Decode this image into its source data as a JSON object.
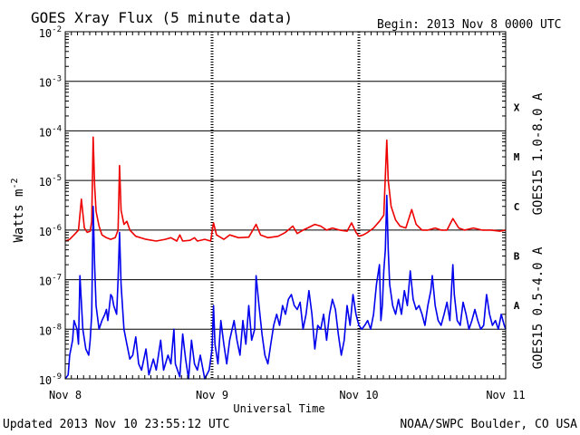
{
  "header": {
    "title": "GOES Xray Flux (5 minute data)",
    "begin": "Begin:  2013 Nov 8 0000 UTC"
  },
  "footer": {
    "updated": "Updated 2013 Nov 10 23:55:12 UTC",
    "credit": "NOAA/SWPC Boulder, CO USA"
  },
  "colors": {
    "long_channel": "#ee0000",
    "short_channel": "#0000ee",
    "axis": "#000000"
  },
  "chart_data": {
    "type": "line",
    "title": "GOES Xray Flux (5 minute data)",
    "xlabel": "Universal Time",
    "ylabel": "Watts m-2",
    "x_unit": "days since 2013 Nov 8 0000 UTC",
    "xlim": [
      0,
      3
    ],
    "ylim": [
      1e-09,
      0.01
    ],
    "yscale": "log",
    "grid": "horizontal lines at each decade, dashed day boundaries",
    "x_ticks": [
      {
        "value": 0,
        "label": "Nov 8"
      },
      {
        "value": 1,
        "label": "Nov 9"
      },
      {
        "value": 2,
        "label": "Nov 10"
      },
      {
        "value": 3,
        "label": "Nov 11"
      }
    ],
    "y_ticks": [
      {
        "value": 1e-09,
        "base": "10",
        "exp": "-9"
      },
      {
        "value": 1e-08,
        "base": "10",
        "exp": "-8"
      },
      {
        "value": 1e-07,
        "base": "10",
        "exp": "-7"
      },
      {
        "value": 1e-06,
        "base": "10",
        "exp": "-6"
      },
      {
        "value": 1e-05,
        "base": "10",
        "exp": "-5"
      },
      {
        "value": 0.0001,
        "base": "10",
        "exp": "-4"
      },
      {
        "value": 0.001,
        "base": "10",
        "exp": "-3"
      },
      {
        "value": 0.01,
        "base": "10",
        "exp": "-2"
      }
    ],
    "flare_classes": [
      {
        "label": "X",
        "value": 0.0003
      },
      {
        "label": "M",
        "value": 3e-05
      },
      {
        "label": "C",
        "value": 3e-06
      },
      {
        "label": "B",
        "value": 3e-07
      },
      {
        "label": "A",
        "value": 3e-08
      }
    ],
    "series": [
      {
        "name": "GOES15 1.0-8.0 A",
        "color": "#ee0000",
        "points": [
          [
            0.0,
            6e-07
          ],
          [
            0.03,
            6.5e-07
          ],
          [
            0.06,
            8e-07
          ],
          [
            0.09,
            1e-06
          ],
          [
            0.11,
            4.2e-06
          ],
          [
            0.13,
            1.1e-06
          ],
          [
            0.15,
            9e-07
          ],
          [
            0.17,
            9.5e-07
          ],
          [
            0.18,
            1.5e-06
          ],
          [
            0.19,
            7.5e-05
          ],
          [
            0.2,
            8e-06
          ],
          [
            0.21,
            2.4e-06
          ],
          [
            0.23,
            1.2e-06
          ],
          [
            0.25,
            8e-07
          ],
          [
            0.28,
            7e-07
          ],
          [
            0.31,
            6.5e-07
          ],
          [
            0.34,
            7e-07
          ],
          [
            0.36,
            1e-06
          ],
          [
            0.37,
            2e-05
          ],
          [
            0.38,
            2.5e-06
          ],
          [
            0.4,
            1.3e-06
          ],
          [
            0.42,
            1.5e-06
          ],
          [
            0.44,
            1e-06
          ],
          [
            0.48,
            7.5e-07
          ],
          [
            0.55,
            6.5e-07
          ],
          [
            0.62,
            6e-07
          ],
          [
            0.68,
            6.5e-07
          ],
          [
            0.72,
            7e-07
          ],
          [
            0.76,
            6e-07
          ],
          [
            0.78,
            8e-07
          ],
          [
            0.8,
            6e-07
          ],
          [
            0.85,
            6.2e-07
          ],
          [
            0.88,
            7e-07
          ],
          [
            0.9,
            6e-07
          ],
          [
            0.95,
            6.5e-07
          ],
          [
            0.99,
            6e-07
          ],
          [
            1.01,
            1.4e-06
          ],
          [
            1.03,
            8e-07
          ],
          [
            1.08,
            6.5e-07
          ],
          [
            1.12,
            8e-07
          ],
          [
            1.18,
            7e-07
          ],
          [
            1.25,
            7.2e-07
          ],
          [
            1.3,
            1.3e-06
          ],
          [
            1.33,
            8e-07
          ],
          [
            1.38,
            7e-07
          ],
          [
            1.45,
            7.5e-07
          ],
          [
            1.5,
            9e-07
          ],
          [
            1.55,
            1.2e-06
          ],
          [
            1.58,
            8.5e-07
          ],
          [
            1.62,
            1e-06
          ],
          [
            1.65,
            1.1e-06
          ],
          [
            1.7,
            1.3e-06
          ],
          [
            1.74,
            1.2e-06
          ],
          [
            1.78,
            1e-06
          ],
          [
            1.82,
            1.1e-06
          ],
          [
            1.87,
            1e-06
          ],
          [
            1.92,
            9.5e-07
          ],
          [
            1.95,
            1.4e-06
          ],
          [
            1.98,
            9e-07
          ],
          [
            2.0,
            7.5e-07
          ],
          [
            2.03,
            8e-07
          ],
          [
            2.06,
            9e-07
          ],
          [
            2.1,
            1.1e-06
          ],
          [
            2.14,
            1.5e-06
          ],
          [
            2.17,
            2e-06
          ],
          [
            2.19,
            6.5e-05
          ],
          [
            2.2,
            1e-05
          ],
          [
            2.22,
            3e-06
          ],
          [
            2.25,
            1.6e-06
          ],
          [
            2.28,
            1.2e-06
          ],
          [
            2.32,
            1.1e-06
          ],
          [
            2.36,
            2.6e-06
          ],
          [
            2.39,
            1.3e-06
          ],
          [
            2.43,
            1e-06
          ],
          [
            2.47,
            1e-06
          ],
          [
            2.52,
            1.1e-06
          ],
          [
            2.56,
            1e-06
          ],
          [
            2.6,
            1e-06
          ],
          [
            2.64,
            1.7e-06
          ],
          [
            2.68,
            1.1e-06
          ],
          [
            2.72,
            1e-06
          ],
          [
            2.78,
            1.1e-06
          ],
          [
            2.84,
            1e-06
          ],
          [
            2.9,
            1e-06
          ],
          [
            2.96,
            9.5e-07
          ],
          [
            3.0,
            1e-06
          ]
        ]
      },
      {
        "name": "GOES15 0.5-4.0 A",
        "color": "#0000ee",
        "points": [
          [
            0.0,
            1e-09
          ],
          [
            0.02,
            1.2e-09
          ],
          [
            0.03,
            3e-09
          ],
          [
            0.05,
            6e-09
          ],
          [
            0.06,
            1.5e-08
          ],
          [
            0.08,
            1e-08
          ],
          [
            0.09,
            5e-09
          ],
          [
            0.1,
            1.2e-07
          ],
          [
            0.12,
            1e-08
          ],
          [
            0.14,
            4e-09
          ],
          [
            0.16,
            3e-09
          ],
          [
            0.17,
            6e-09
          ],
          [
            0.18,
            2e-08
          ],
          [
            0.19,
            3e-06
          ],
          [
            0.2,
            2e-07
          ],
          [
            0.21,
            3e-08
          ],
          [
            0.23,
            1e-08
          ],
          [
            0.25,
            1.5e-08
          ],
          [
            0.27,
            2e-08
          ],
          [
            0.28,
            2.5e-08
          ],
          [
            0.29,
            1.5e-08
          ],
          [
            0.31,
            5e-08
          ],
          [
            0.32,
            4.5e-08
          ],
          [
            0.33,
            3e-08
          ],
          [
            0.35,
            2e-08
          ],
          [
            0.36,
            1e-07
          ],
          [
            0.37,
            9e-07
          ],
          [
            0.38,
            8e-08
          ],
          [
            0.4,
            1e-08
          ],
          [
            0.42,
            5e-09
          ],
          [
            0.44,
            2.5e-09
          ],
          [
            0.46,
            3e-09
          ],
          [
            0.48,
            7e-09
          ],
          [
            0.5,
            2e-09
          ],
          [
            0.52,
            1.5e-09
          ],
          [
            0.55,
            4e-09
          ],
          [
            0.57,
            1.2e-09
          ],
          [
            0.6,
            2.5e-09
          ],
          [
            0.62,
            1.5e-09
          ],
          [
            0.65,
            6e-09
          ],
          [
            0.67,
            1.5e-09
          ],
          [
            0.7,
            3e-09
          ],
          [
            0.72,
            2e-09
          ],
          [
            0.74,
            1e-08
          ],
          [
            0.75,
            2e-09
          ],
          [
            0.78,
            1.1e-09
          ],
          [
            0.8,
            8e-09
          ],
          [
            0.82,
            2.5e-09
          ],
          [
            0.84,
            1e-09
          ],
          [
            0.86,
            6e-09
          ],
          [
            0.88,
            2e-09
          ],
          [
            0.9,
            1.5e-09
          ],
          [
            0.92,
            3e-09
          ],
          [
            0.95,
            1e-09
          ],
          [
            0.98,
            1.5e-09
          ],
          [
            1.0,
            4e-09
          ],
          [
            1.01,
            3e-08
          ],
          [
            1.02,
            5e-09
          ],
          [
            1.04,
            2e-09
          ],
          [
            1.06,
            1.5e-08
          ],
          [
            1.08,
            5e-09
          ],
          [
            1.1,
            2e-09
          ],
          [
            1.12,
            6e-09
          ],
          [
            1.15,
            1.5e-08
          ],
          [
            1.17,
            6e-09
          ],
          [
            1.19,
            3e-09
          ],
          [
            1.21,
            1.5e-08
          ],
          [
            1.23,
            5e-09
          ],
          [
            1.25,
            3e-08
          ],
          [
            1.27,
            6e-09
          ],
          [
            1.29,
            1e-08
          ],
          [
            1.3,
            1.2e-07
          ],
          [
            1.32,
            3e-08
          ],
          [
            1.34,
            8e-09
          ],
          [
            1.36,
            3e-09
          ],
          [
            1.38,
            2e-09
          ],
          [
            1.4,
            5e-09
          ],
          [
            1.42,
            1.2e-08
          ],
          [
            1.44,
            2e-08
          ],
          [
            1.46,
            1.2e-08
          ],
          [
            1.48,
            3e-08
          ],
          [
            1.5,
            2e-08
          ],
          [
            1.52,
            4e-08
          ],
          [
            1.54,
            5e-08
          ],
          [
            1.56,
            3e-08
          ],
          [
            1.58,
            2.5e-08
          ],
          [
            1.6,
            3.5e-08
          ],
          [
            1.62,
            1e-08
          ],
          [
            1.64,
            2e-08
          ],
          [
            1.66,
            6e-08
          ],
          [
            1.68,
            2e-08
          ],
          [
            1.7,
            4e-09
          ],
          [
            1.72,
            1.2e-08
          ],
          [
            1.74,
            1e-08
          ],
          [
            1.76,
            2e-08
          ],
          [
            1.78,
            6e-09
          ],
          [
            1.8,
            2e-08
          ],
          [
            1.82,
            4e-08
          ],
          [
            1.84,
            2.5e-08
          ],
          [
            1.86,
            8e-09
          ],
          [
            1.88,
            3e-09
          ],
          [
            1.9,
            6e-09
          ],
          [
            1.92,
            3e-08
          ],
          [
            1.94,
            1.2e-08
          ],
          [
            1.96,
            5e-08
          ],
          [
            1.98,
            2e-08
          ],
          [
            2.0,
            1.2e-08
          ],
          [
            2.02,
            1e-08
          ],
          [
            2.04,
            1.2e-08
          ],
          [
            2.06,
            1.5e-08
          ],
          [
            2.08,
            1e-08
          ],
          [
            2.1,
            2e-08
          ],
          [
            2.12,
            8e-08
          ],
          [
            2.14,
            2e-07
          ],
          [
            2.15,
            1.5e-08
          ],
          [
            2.16,
            3e-08
          ],
          [
            2.17,
            1.5e-07
          ],
          [
            2.18,
            4e-07
          ],
          [
            2.19,
            5e-06
          ],
          [
            2.2,
            4e-07
          ],
          [
            2.21,
            8e-08
          ],
          [
            2.23,
            3e-08
          ],
          [
            2.25,
            2e-08
          ],
          [
            2.27,
            4e-08
          ],
          [
            2.29,
            2e-08
          ],
          [
            2.31,
            6e-08
          ],
          [
            2.33,
            3e-08
          ],
          [
            2.35,
            1.5e-07
          ],
          [
            2.37,
            4e-08
          ],
          [
            2.39,
            2.5e-08
          ],
          [
            2.41,
            3e-08
          ],
          [
            2.43,
            2e-08
          ],
          [
            2.45,
            1.2e-08
          ],
          [
            2.47,
            3e-08
          ],
          [
            2.49,
            6e-08
          ],
          [
            2.5,
            1.2e-07
          ],
          [
            2.52,
            3e-08
          ],
          [
            2.54,
            1.5e-08
          ],
          [
            2.56,
            1.2e-08
          ],
          [
            2.58,
            2e-08
          ],
          [
            2.6,
            3.5e-08
          ],
          [
            2.62,
            1.5e-08
          ],
          [
            2.64,
            2e-07
          ],
          [
            2.65,
            5e-08
          ],
          [
            2.67,
            1.5e-08
          ],
          [
            2.69,
            1.2e-08
          ],
          [
            2.71,
            3.5e-08
          ],
          [
            2.73,
            2e-08
          ],
          [
            2.75,
            1e-08
          ],
          [
            2.77,
            1.5e-08
          ],
          [
            2.79,
            2.5e-08
          ],
          [
            2.81,
            1.5e-08
          ],
          [
            2.83,
            1e-08
          ],
          [
            2.85,
            1.2e-08
          ],
          [
            2.87,
            5e-08
          ],
          [
            2.89,
            2e-08
          ],
          [
            2.91,
            1.2e-08
          ],
          [
            2.93,
            1.5e-08
          ],
          [
            2.95,
            1e-08
          ],
          [
            2.97,
            2e-08
          ],
          [
            2.99,
            1.2e-08
          ],
          [
            3.0,
            1e-08
          ]
        ]
      }
    ]
  }
}
